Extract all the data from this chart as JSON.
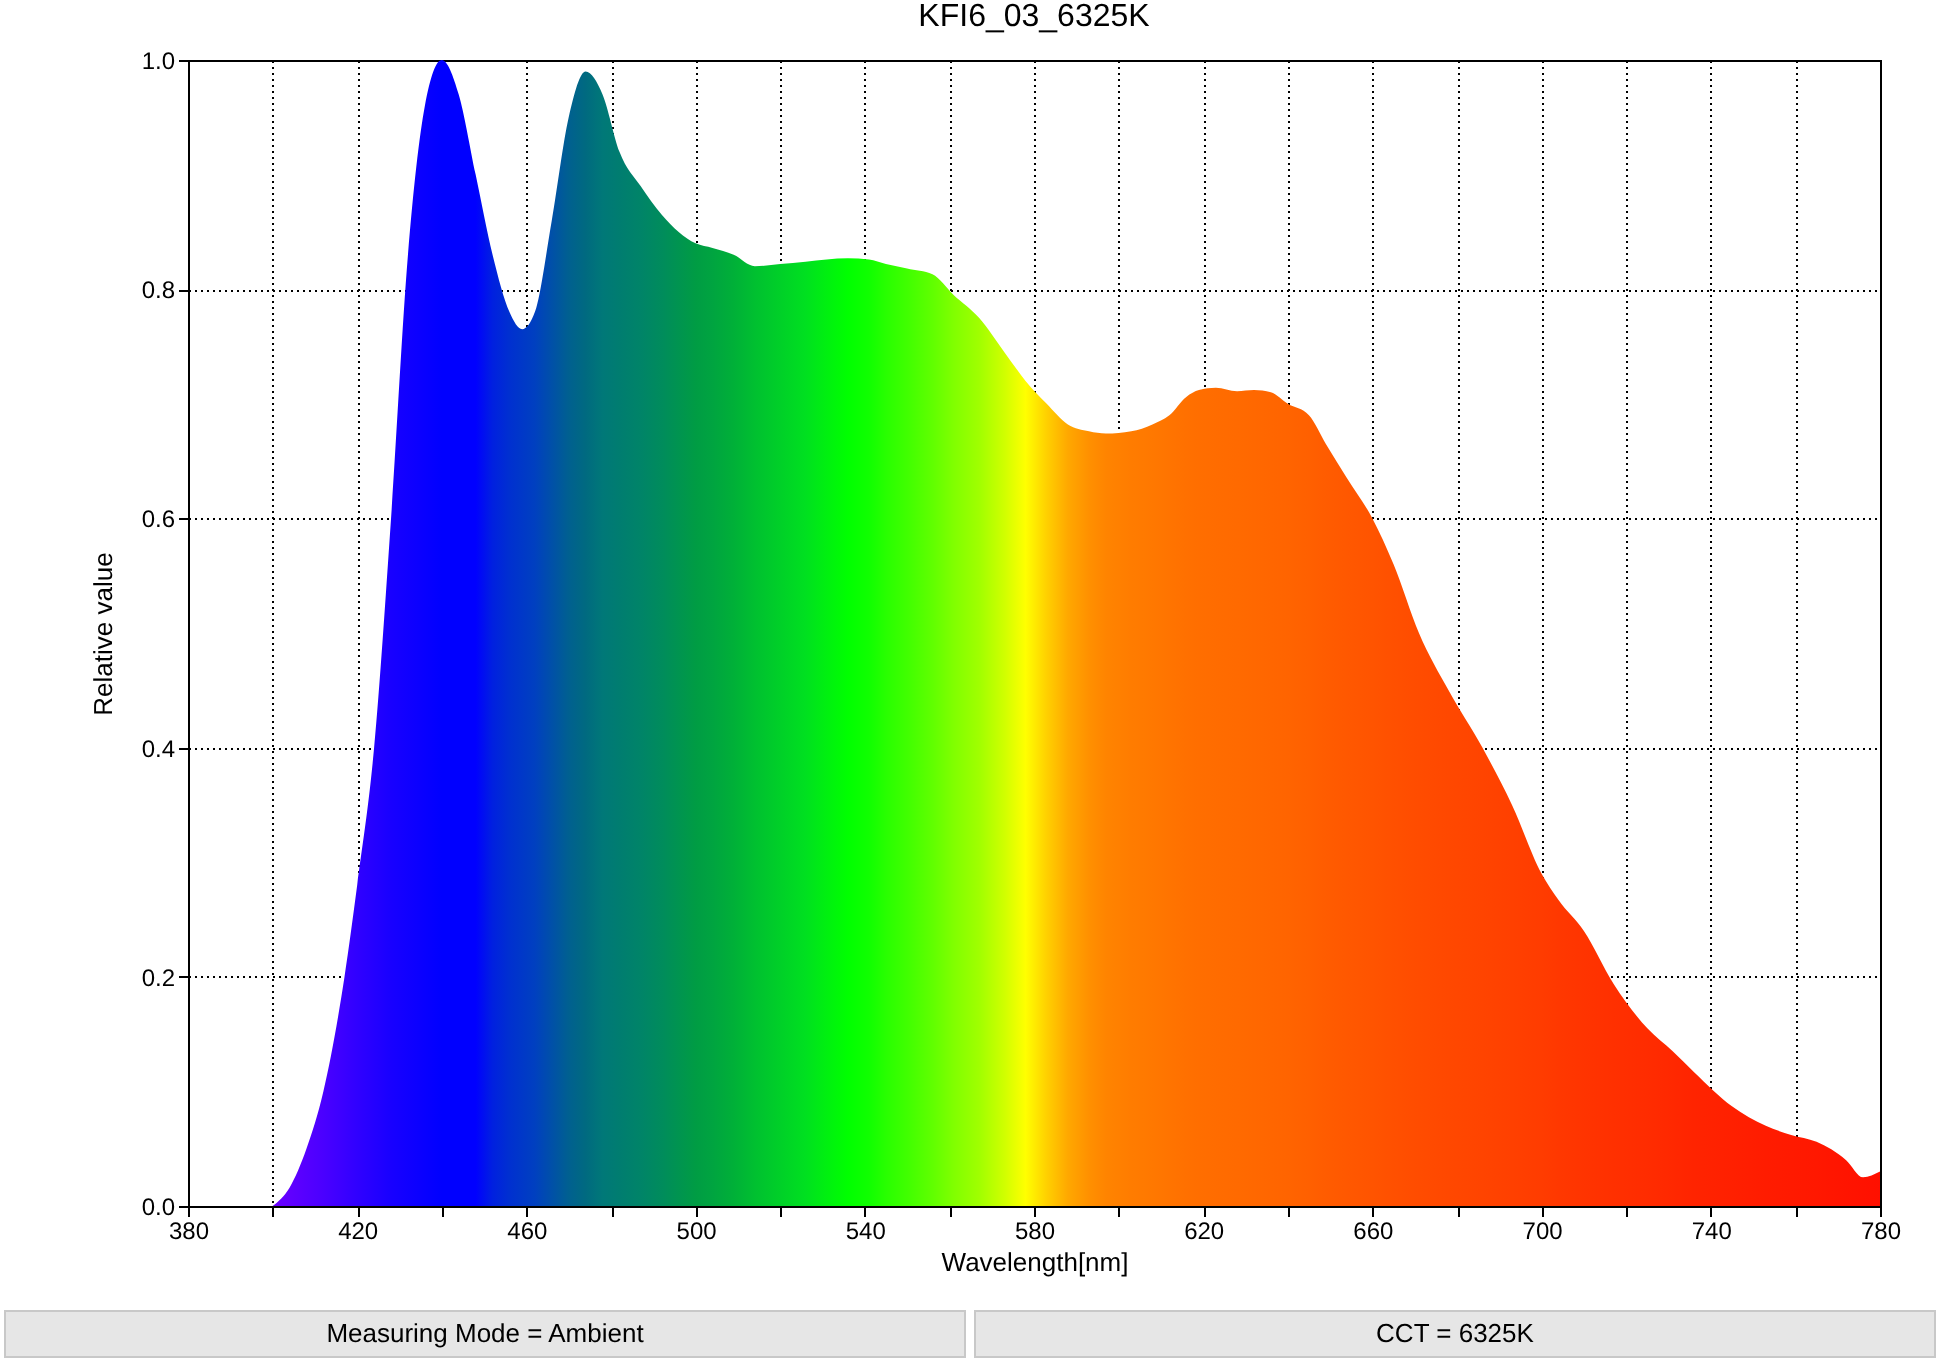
{
  "chart_data": {
    "type": "area",
    "title": "KFI6_03_6325K",
    "xlabel": "Wavelength[nm]",
    "ylabel": "Relative value",
    "x": [
      400,
      404,
      408,
      412,
      417,
      420,
      424,
      428,
      432,
      436,
      440,
      444,
      448,
      452,
      456,
      459,
      462,
      466,
      470,
      474,
      478,
      482,
      487,
      492,
      496,
      500,
      504,
      509,
      514,
      520,
      526,
      531,
      536,
      541,
      545,
      550,
      556,
      561,
      567,
      573,
      578,
      583,
      588,
      593,
      597,
      603,
      608,
      612,
      616,
      619,
      623,
      628,
      632,
      636,
      640,
      645,
      649,
      654,
      660,
      665,
      671,
      678,
      686,
      693,
      700,
      704,
      710,
      717,
      725,
      731,
      736,
      745,
      753,
      759,
      765,
      772,
      776,
      780
    ],
    "series": [
      {
        "values": [
          0,
          0.016,
          0.05,
          0.1,
          0.2,
          0.28,
          0.4,
          0.6,
          0.83,
          0.96,
          1.0,
          0.97,
          0.9,
          0.83,
          0.78,
          0.765,
          0.78,
          0.86,
          0.95,
          0.99,
          0.97,
          0.92,
          0.89,
          0.865,
          0.85,
          0.84,
          0.836,
          0.83,
          0.82,
          0.822,
          0.824,
          0.826,
          0.827,
          0.826,
          0.822,
          0.818,
          0.813,
          0.795,
          0.775,
          0.745,
          0.72,
          0.7,
          0.682,
          0.676,
          0.674,
          0.676,
          0.682,
          0.69,
          0.706,
          0.712,
          0.714,
          0.711,
          0.712,
          0.71,
          0.7,
          0.69,
          0.665,
          0.635,
          0.6,
          0.56,
          0.5,
          0.45,
          0.4,
          0.35,
          0.29,
          0.267,
          0.24,
          0.194,
          0.155,
          0.135,
          0.117,
          0.087,
          0.07,
          0.062,
          0.056,
          0.04,
          0.025,
          0.03
        ]
      }
    ],
    "colors": [
      "#6a00ff",
      "#6000ff",
      "#5500ff",
      "#4a00ff",
      "#3a00ff",
      "#3000ff",
      "#2400ff",
      "#1800ff",
      "#1000ff",
      "#0800ff",
      "#0000ff",
      "#0000ff",
      "#0000ff",
      "#0020e0",
      "#0030d0",
      "#0038c8",
      "#0040c0",
      "#0050a8",
      "#006090",
      "#006a80",
      "#007878",
      "#007d70",
      "#008468",
      "#008c5c",
      "#009450",
      "#009c44",
      "#00a440",
      "#00b038",
      "#00c030",
      "#00d028",
      "#00e020",
      "#00f010",
      "#00ff00",
      "#10ff00",
      "#28ff00",
      "#40ff00",
      "#60ff00",
      "#80ff00",
      "#a0ff00",
      "#d0ff00",
      "#ffff00",
      "#ffd000",
      "#ffa800",
      "#ff9000",
      "#ff8400",
      "#ff7c00",
      "#ff7800",
      "#ff7400",
      "#ff7000",
      "#ff6e00",
      "#ff6c00",
      "#ff6a00",
      "#ff6800",
      "#ff6600",
      "#ff6400",
      "#ff6000",
      "#ff5c00",
      "#ff5800",
      "#ff5400",
      "#ff5000",
      "#ff4c00",
      "#ff4800",
      "#ff4400",
      "#ff4000",
      "#ff3c00",
      "#ff3800",
      "#ff3400",
      "#ff3000",
      "#ff2c00",
      "#ff2800",
      "#ff2400",
      "#ff2000",
      "#ff1c00",
      "#ff1a00",
      "#ff1800",
      "#ff1400",
      "#ff1200",
      "#ff1000"
    ],
    "xlim": [
      380,
      780
    ],
    "xticks": [
      380,
      {
        "value": 400,
        "label": null
      },
      420,
      {
        "value": 440,
        "label": null
      },
      460,
      {
        "value": 480,
        "label": null
      },
      500,
      {
        "value": 520,
        "label": null
      },
      540,
      {
        "value": 560,
        "label": null
      },
      580,
      {
        "value": 600,
        "label": null
      },
      620,
      {
        "value": 640,
        "label": null
      },
      660,
      {
        "value": 680,
        "label": null
      },
      700,
      {
        "value": 720,
        "label": null
      },
      740,
      {
        "value": 760,
        "label": null
      },
      780
    ],
    "ylim": [
      0,
      1
    ],
    "yticks": [
      {
        "value": 0,
        "label": "0.0"
      },
      {
        "value": 0.2,
        "label": "0.2"
      },
      {
        "value": 0.4,
        "label": "0.4"
      },
      {
        "value": 0.6,
        "label": "0.6"
      },
      {
        "value": 0.8,
        "label": "0.8"
      },
      {
        "value": 1,
        "label": "1.0"
      }
    ],
    "grid": true,
    "annotations": [
      "Measuring Mode = Ambient",
      "CCT = 6325K"
    ]
  }
}
